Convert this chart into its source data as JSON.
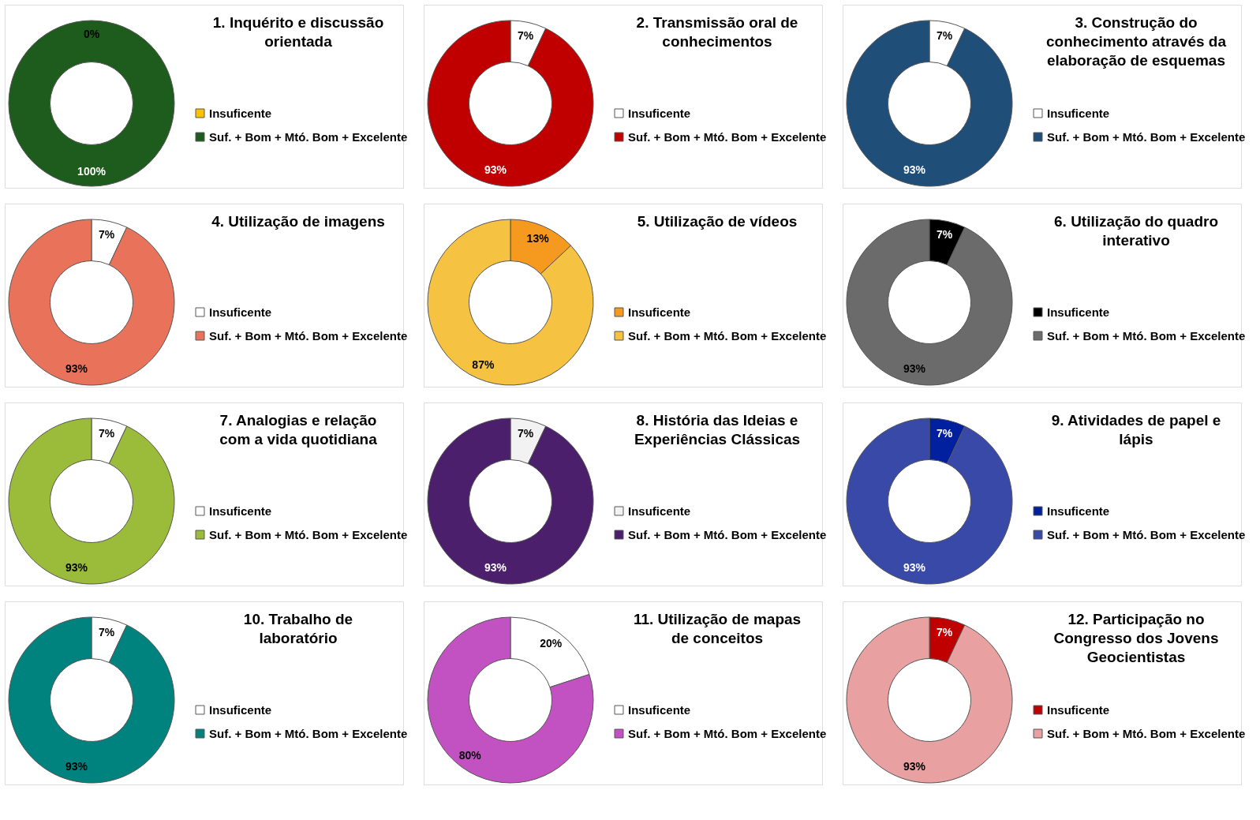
{
  "chart_data": [
    {
      "type": "donut",
      "title": "1. Inquérito e discussão orientada",
      "categories": [
        "Insuficente",
        "Suf. + Bom + Mtó. Bom + Excelente"
      ],
      "values": [
        0,
        100
      ],
      "value_labels": [
        "0%",
        "100%"
      ],
      "colors": [
        "#ffc000",
        "#1e5c1e"
      ],
      "legend": "right"
    },
    {
      "type": "donut",
      "title": "2. Transmissão oral de conhecimentos",
      "categories": [
        "Insuficente",
        "Suf. + Bom + Mtó. Bom + Excelente"
      ],
      "values": [
        7,
        93
      ],
      "value_labels": [
        "7%",
        "93%"
      ],
      "colors": [
        "#ffffff",
        "#c00000"
      ],
      "legend": "right"
    },
    {
      "type": "donut",
      "title": "3. Construção do conhecimento através da elaboração de esquemas",
      "categories": [
        "Insuficente",
        "Suf. + Bom + Mtó. Bom + Excelente"
      ],
      "values": [
        7,
        93
      ],
      "value_labels": [
        "7%",
        "93%"
      ],
      "colors": [
        "#ffffff",
        "#1f4e79"
      ],
      "legend": "right"
    },
    {
      "type": "donut",
      "title": "4. Utilização de imagens",
      "categories": [
        "Insuficente",
        "Suf. + Bom + Mtó. Bom + Excelente"
      ],
      "values": [
        7,
        93
      ],
      "value_labels": [
        "7%",
        "93%"
      ],
      "colors": [
        "#ffffff",
        "#e8735a"
      ],
      "legend": "right"
    },
    {
      "type": "donut",
      "title": "5. Utilização de vídeos",
      "categories": [
        "Insuficente",
        "Suf. + Bom + Mtó. Bom + Excelente"
      ],
      "values": [
        13,
        87
      ],
      "value_labels": [
        "13%",
        "87%"
      ],
      "colors": [
        "#f59a1e",
        "#f5c242"
      ],
      "legend": "right"
    },
    {
      "type": "donut",
      "title": "6. Utilização do quadro interativo",
      "categories": [
        "Insuficente",
        "Suf. + Bom + Mtó. Bom + Excelente"
      ],
      "values": [
        7,
        93
      ],
      "value_labels": [
        "7%",
        "93%"
      ],
      "colors": [
        "#000000",
        "#6b6b6b"
      ],
      "legend": "right"
    },
    {
      "type": "donut",
      "title": "7. Analogias e relação com a vida quotidiana",
      "categories": [
        "Insuficente",
        "Suf. + Bom + Mtó. Bom + Excelente"
      ],
      "values": [
        7,
        93
      ],
      "value_labels": [
        "7%",
        "93%"
      ],
      "colors": [
        "#ffffff",
        "#9bbb3a"
      ],
      "legend": "right"
    },
    {
      "type": "donut",
      "title": "8. História das Ideias e Experiências Clássicas",
      "categories": [
        "Insuficente",
        "Suf. + Bom + Mtó. Bom + Excelente"
      ],
      "values": [
        7,
        93
      ],
      "value_labels": [
        "7%",
        "93%"
      ],
      "colors": [
        "#f2f2f2",
        "#4b1f6b"
      ],
      "legend": "right"
    },
    {
      "type": "donut",
      "title": "9. Atividades de papel e lápis",
      "categories": [
        "Insuficente",
        "Suf. + Bom + Mtó. Bom + Excelente"
      ],
      "values": [
        7,
        93
      ],
      "value_labels": [
        "7%",
        "93%"
      ],
      "colors": [
        "#00209f",
        "#3949a8"
      ],
      "legend": "right"
    },
    {
      "type": "donut",
      "title": "10. Trabalho de laboratório",
      "categories": [
        "Insuficente",
        "Suf. + Bom + Mtó. Bom + Excelente"
      ],
      "values": [
        7,
        93
      ],
      "value_labels": [
        "7%",
        "93%"
      ],
      "colors": [
        "#ffffff",
        "#00827f"
      ],
      "legend": "right"
    },
    {
      "type": "donut",
      "title": "11. Utilização de mapas de conceitos",
      "categories": [
        "Insuficente",
        "Suf. + Bom + Mtó. Bom + Excelente"
      ],
      "values": [
        20,
        80
      ],
      "value_labels": [
        "20%",
        "80%"
      ],
      "colors": [
        "#ffffff",
        "#c252c2"
      ],
      "legend": "right"
    },
    {
      "type": "donut",
      "title": "12. Participação no Congresso dos Jovens Geocientistas",
      "categories": [
        "Insuficente",
        "Suf. + Bom + Mtó. Bom + Excelente"
      ],
      "values": [
        7,
        93
      ],
      "value_labels": [
        "7%",
        "93%"
      ],
      "colors": [
        "#c00000",
        "#e8a0a0"
      ],
      "legend": "right"
    }
  ]
}
